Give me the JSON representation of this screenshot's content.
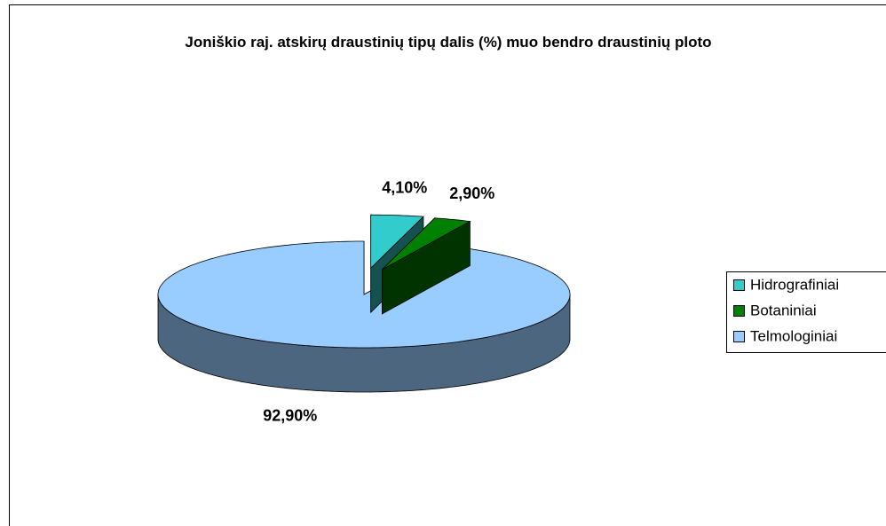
{
  "chart_data": {
    "type": "pie",
    "title": "Joniškio raj. atskirų draustinių tipų dalis (%) muo bendro draustinių ploto",
    "categories": [
      "Hidrografiniai",
      "Botaniniai",
      "Telmologiniai"
    ],
    "values": [
      4.1,
      2.9,
      92.9
    ],
    "value_labels": [
      "4,10%",
      "2,90%",
      "92,90%"
    ],
    "colors": [
      "#33cccc",
      "#008000",
      "#99ccff"
    ],
    "legend": "right"
  }
}
